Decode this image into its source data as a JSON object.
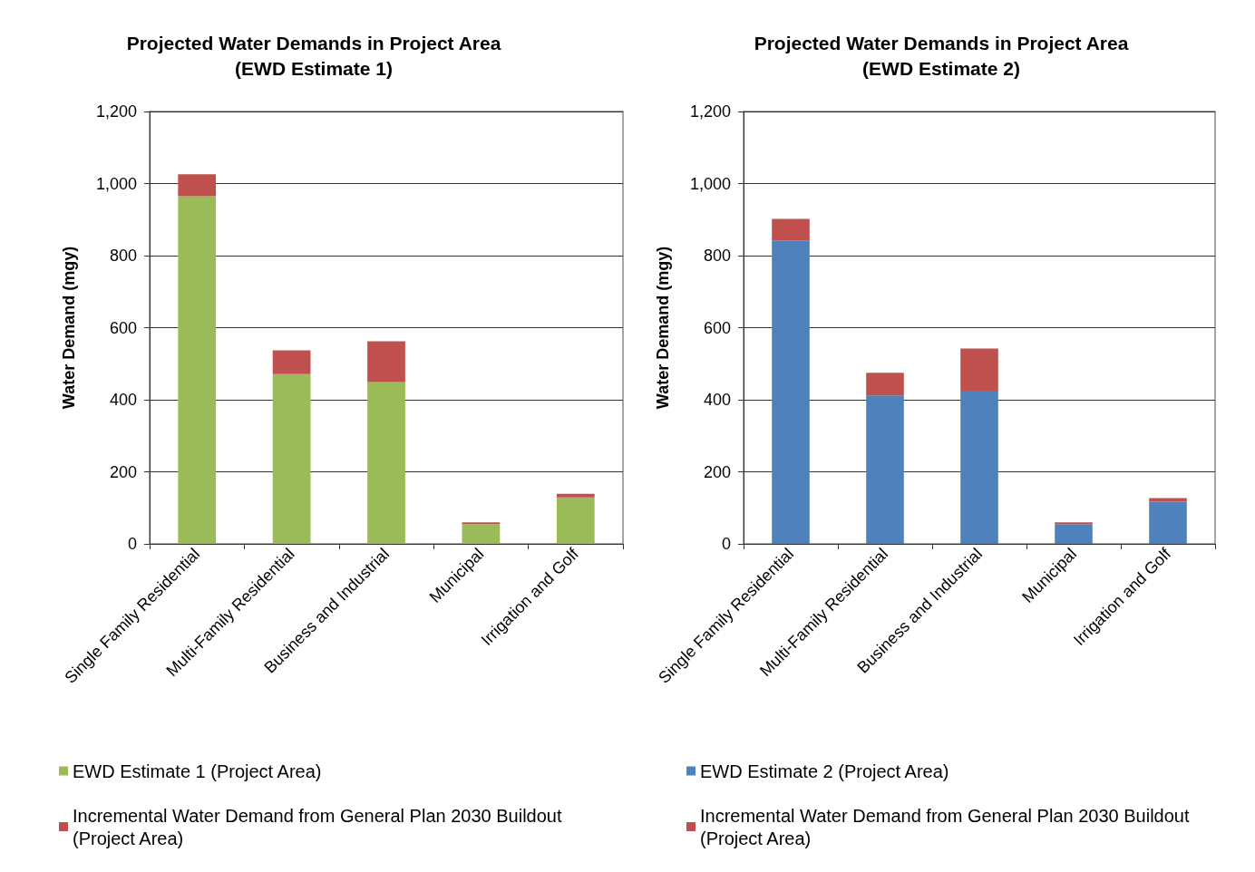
{
  "chart_data": [
    {
      "type": "bar",
      "title": "Projected Water Demands in Project Area\n(EWD Estimate 1)",
      "ylabel": "Water Demand (mgy)",
      "categories": [
        "Single Family Residential",
        "Multi-Family Residential",
        "Business and Industrial",
        "Municipal",
        "Irrigation and Golf"
      ],
      "stacked": true,
      "series": [
        {
          "name": "EWD Estimate 1 (Project Area)",
          "color": "#9bbb59",
          "values": [
            965,
            471,
            449,
            55,
            129
          ]
        },
        {
          "name": "Incremental Water Demand from General Plan 2030 Buildout (Project Area)",
          "color": "#c0504d",
          "values": [
            61,
            66,
            113,
            5,
            10
          ]
        }
      ],
      "ylim": [
        0,
        1200
      ],
      "yticks": [
        0,
        {
          "value": 200,
          "label": "200"
        },
        {
          "value": 400,
          "label": "400"
        },
        {
          "value": 600,
          "label": "600"
        },
        {
          "value": 800,
          "label": "800"
        },
        {
          "value": 1000,
          "label": "1,000"
        },
        {
          "value": 1200,
          "label": "1,200"
        }
      ],
      "grid": "y",
      "legend": "bottom left"
    },
    {
      "type": "bar",
      "title": "Projected Water Demands in Project Area\n(EWD Estimate 2)",
      "ylabel": "Water Demand (mgy)",
      "categories": [
        "Single Family Residential",
        "Multi-Family Residential",
        "Business and Industrial",
        "Municipal",
        "Irrigation and Golf"
      ],
      "stacked": true,
      "series": [
        {
          "name": "EWD Estimate 2 (Project Area)",
          "color": "#4f81bd",
          "values": [
            842,
            412,
            425,
            55,
            117
          ]
        },
        {
          "name": "Incremental Water Demand from General Plan 2030 Buildout (Project Area)",
          "color": "#c0504d",
          "values": [
            60,
            63,
            117,
            5,
            10
          ]
        }
      ],
      "ylim": [
        0,
        1200
      ],
      "yticks": [
        0,
        {
          "value": 200,
          "label": "200"
        },
        {
          "value": 400,
          "label": "400"
        },
        {
          "value": 600,
          "label": "600"
        },
        {
          "value": 800,
          "label": "800"
        },
        {
          "value": 1000,
          "label": "1,000"
        },
        {
          "value": 1200,
          "label": "1,200"
        }
      ],
      "grid": "y",
      "legend": "bottom left"
    }
  ]
}
